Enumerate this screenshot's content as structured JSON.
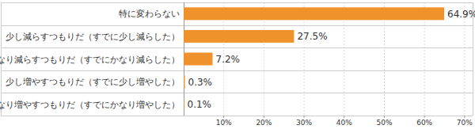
{
  "chart_data": {
    "type": "bar",
    "orientation": "horizontal",
    "categories": [
      "特に変わらない",
      "少し減らすつもりだ（すでに少し減らした）",
      "かなり減らすつもりだ（すでにかなり減らした）",
      "少し増やすつもりだ（すでに少し増やした）",
      "かなり増やすつもりだ（すでにかなり増やした）"
    ],
    "values": [
      64.9,
      27.5,
      7.2,
      0.3,
      0.1
    ],
    "value_labels": [
      "64.9%",
      "27.5%",
      "7.2%",
      "0.3%",
      "0.1%"
    ],
    "color": "#f0922b",
    "xlim": [
      0,
      72
    ],
    "xticks": [
      {
        "value": 10,
        "label": "10%"
      },
      {
        "value": 20,
        "label": "20%"
      },
      {
        "value": 30,
        "label": "30%"
      },
      {
        "value": 40,
        "label": "40%"
      },
      {
        "value": 50,
        "label": "50%"
      },
      {
        "value": 60,
        "label": "60%"
      },
      {
        "value": 70,
        "label": "70%"
      }
    ],
    "data_labels": true,
    "grid": true
  }
}
